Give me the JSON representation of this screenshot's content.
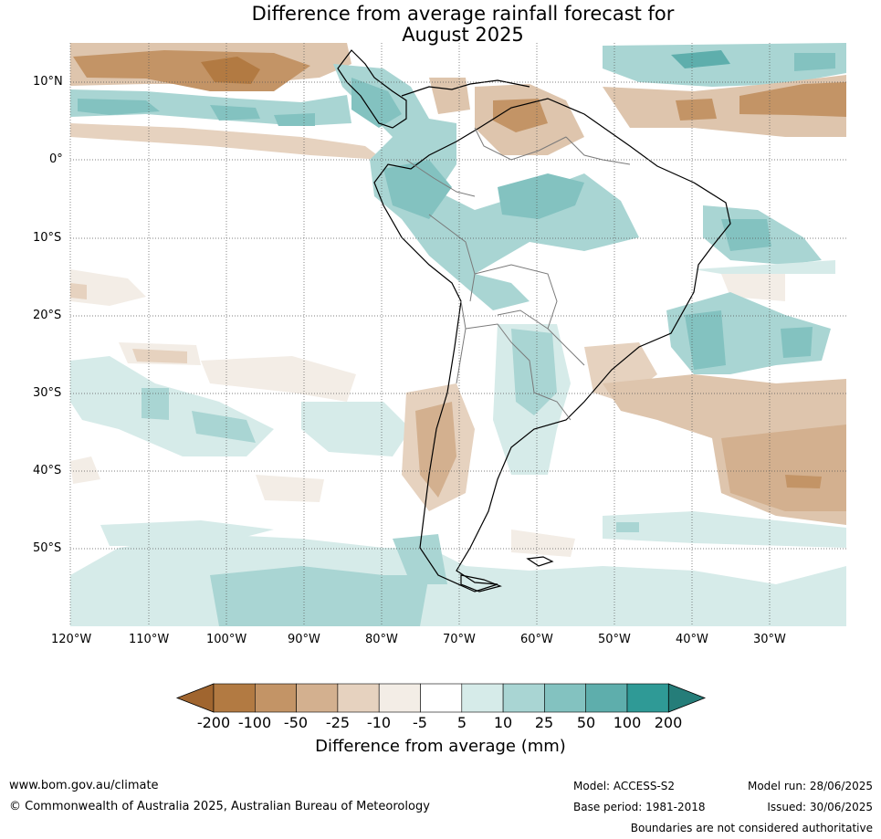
{
  "title_line1": "Difference from average rainfall forecast for",
  "title_line2": "August 2025",
  "lat_labels": [
    "10°N",
    "0°",
    "10°S",
    "20°S",
    "30°S",
    "40°S",
    "50°S"
  ],
  "lon_labels": [
    "120°W",
    "110°W",
    "100°W",
    "90°W",
    "80°W",
    "70°W",
    "60°W",
    "50°W",
    "40°W",
    "30°W"
  ],
  "colorbar": {
    "title": "Difference from average (mm)",
    "ticks": [
      "-200",
      "-100",
      "-50",
      "-25",
      "-10",
      "-5",
      "5",
      "10",
      "25",
      "50",
      "100",
      "200"
    ],
    "colors": [
      "#a0652f",
      "#b27a42",
      "#c39466",
      "#d3b08f",
      "#e6d2bf",
      "#f3ede6",
      "#ffffff",
      "#d6ebe9",
      "#a9d5d3",
      "#83c2c0",
      "#5eaeac",
      "#2f9a96",
      "#257d79"
    ]
  },
  "footer": {
    "website": "www.bom.gov.au/climate",
    "copyright": "© Commonwealth of Australia 2025, Australian Bureau of Meteorology",
    "model": "Model: ACCESS-S2",
    "base_period": "Base period: 1981-2018",
    "model_run": "Model run: 28/06/2025",
    "issued": "Issued: 30/06/2025",
    "disclaimer": "Boundaries are not considered authoritative"
  }
}
